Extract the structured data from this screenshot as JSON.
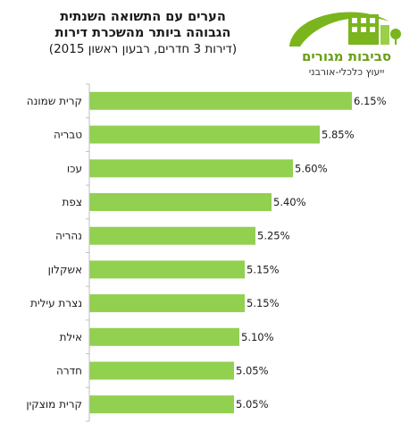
{
  "header": {
    "title_line1": "הערים עם התשואה השנתית",
    "title_line2": "הגבוהה ביותר מהשכרת דירות",
    "subtitle": "(דירות 3 חדרים, רבעון ראשון 2015)"
  },
  "logo": {
    "name": "סביבות מגורים",
    "tagline": "ייעוץ כלכלי-אורבני",
    "color": "#7ab51d"
  },
  "colors": {
    "bar": "#92d050",
    "axis": "#bfbfbf",
    "text": "#1a1a1a"
  },
  "chart_data": {
    "type": "bar",
    "orientation": "horizontal",
    "title": "הערים עם התשואה השנתית הגבוהה ביותר מהשכרת דירות",
    "subtitle": "(דירות 3 חדרים, רבעון ראשון 2015)",
    "categories": [
      "קרית שמונה",
      "טבריה",
      "עכו",
      "צפת",
      "נהריה",
      "אשקלון",
      "נצרת עילית",
      "אילת",
      "חדרה",
      "קרית מוצקין"
    ],
    "values": [
      6.15,
      5.85,
      5.6,
      5.4,
      5.25,
      5.15,
      5.15,
      5.1,
      5.05,
      5.05
    ],
    "value_labels": [
      "6.15%",
      "5.85%",
      "5.60%",
      "5.40%",
      "5.25%",
      "5.15%",
      "5.15%",
      "5.10%",
      "5.05%",
      "5.05%"
    ],
    "xlim": [
      3.7,
      6.15
    ],
    "grid": false,
    "legend": "none"
  }
}
